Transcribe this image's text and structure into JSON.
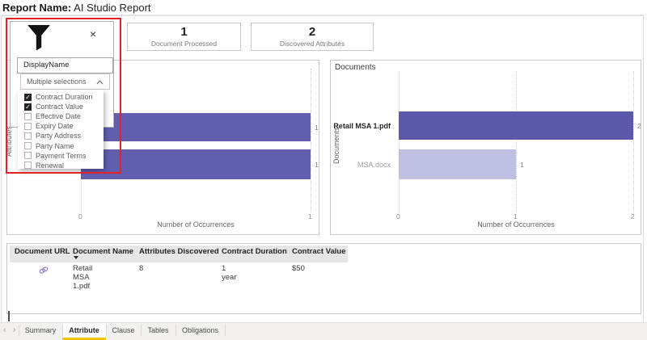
{
  "header": {
    "label": "Report Name:",
    "title": "AI Studio Report"
  },
  "kpis": [
    {
      "value": "1",
      "label": "Document Processed"
    },
    {
      "value": "2",
      "label": "Discovered Attributes"
    }
  ],
  "slicer": {
    "field": "DisplayName",
    "selection_summary": "Multiple selections",
    "options": [
      {
        "label": "Contract Duration",
        "checked": true
      },
      {
        "label": "Contract Value",
        "checked": true
      },
      {
        "label": "Effective Date",
        "checked": false
      },
      {
        "label": "Expiry Date",
        "checked": false
      },
      {
        "label": "Party Address",
        "checked": false
      },
      {
        "label": "Party Name",
        "checked": false
      },
      {
        "label": "Payment Terms",
        "checked": false
      },
      {
        "label": "Renewal",
        "checked": false
      }
    ]
  },
  "chart_data": [
    {
      "type": "bar",
      "orientation": "horizontal",
      "title": "",
      "ylabel": "Attributes",
      "xlabel": "Number of Occurrences",
      "categories": [
        "",
        ""
      ],
      "values": [
        1,
        1
      ],
      "value_labels": [
        "1",
        "1"
      ],
      "bar_colors": [
        "#615EB0",
        "#615EB0"
      ],
      "category_emphasis": [
        false,
        false
      ],
      "xlim": [
        0,
        1
      ],
      "xticks": [
        0,
        1
      ],
      "grid": "dotted-vertical"
    },
    {
      "type": "bar",
      "orientation": "horizontal",
      "title": "Documents",
      "ylabel": "Documents",
      "xlabel": "Number of Occurrences",
      "categories": [
        "Retail MSA 1.pdf",
        "MSA.docx"
      ],
      "values": [
        2,
        1
      ],
      "value_labels": [
        "2",
        "1"
      ],
      "bar_colors": [
        "#5B58A9",
        "#BFBFE1"
      ],
      "category_emphasis": [
        true,
        false
      ],
      "xlim": [
        0,
        2
      ],
      "xticks": [
        0,
        1,
        2
      ],
      "grid": "dotted-vertical"
    }
  ],
  "table": {
    "columns": [
      "Document URL",
      "Document Name",
      "Attributes Discovered",
      "Contract Duration",
      "Contract Value"
    ],
    "sorted_column": "Document Name",
    "sort_direction": "desc",
    "rows": [
      [
        "link-icon",
        "Retail MSA 1.pdf",
        "8",
        "1 year",
        "$50"
      ]
    ]
  },
  "footer": {
    "tabs": [
      {
        "label": "Summary",
        "active": false
      },
      {
        "label": "Attribute",
        "active": true
      },
      {
        "label": "Clause",
        "active": false
      },
      {
        "label": "Tables",
        "active": false
      },
      {
        "label": "Obligations",
        "active": false
      }
    ]
  },
  "colors": {
    "bar_purple": "#615EB0",
    "bar_purple_dark": "#5B58A9",
    "bar_purple_light": "#BFBFE1",
    "annotation_red": "#E82127",
    "tab_active_underline": "#F2C80F",
    "checked_box": "#252423"
  }
}
